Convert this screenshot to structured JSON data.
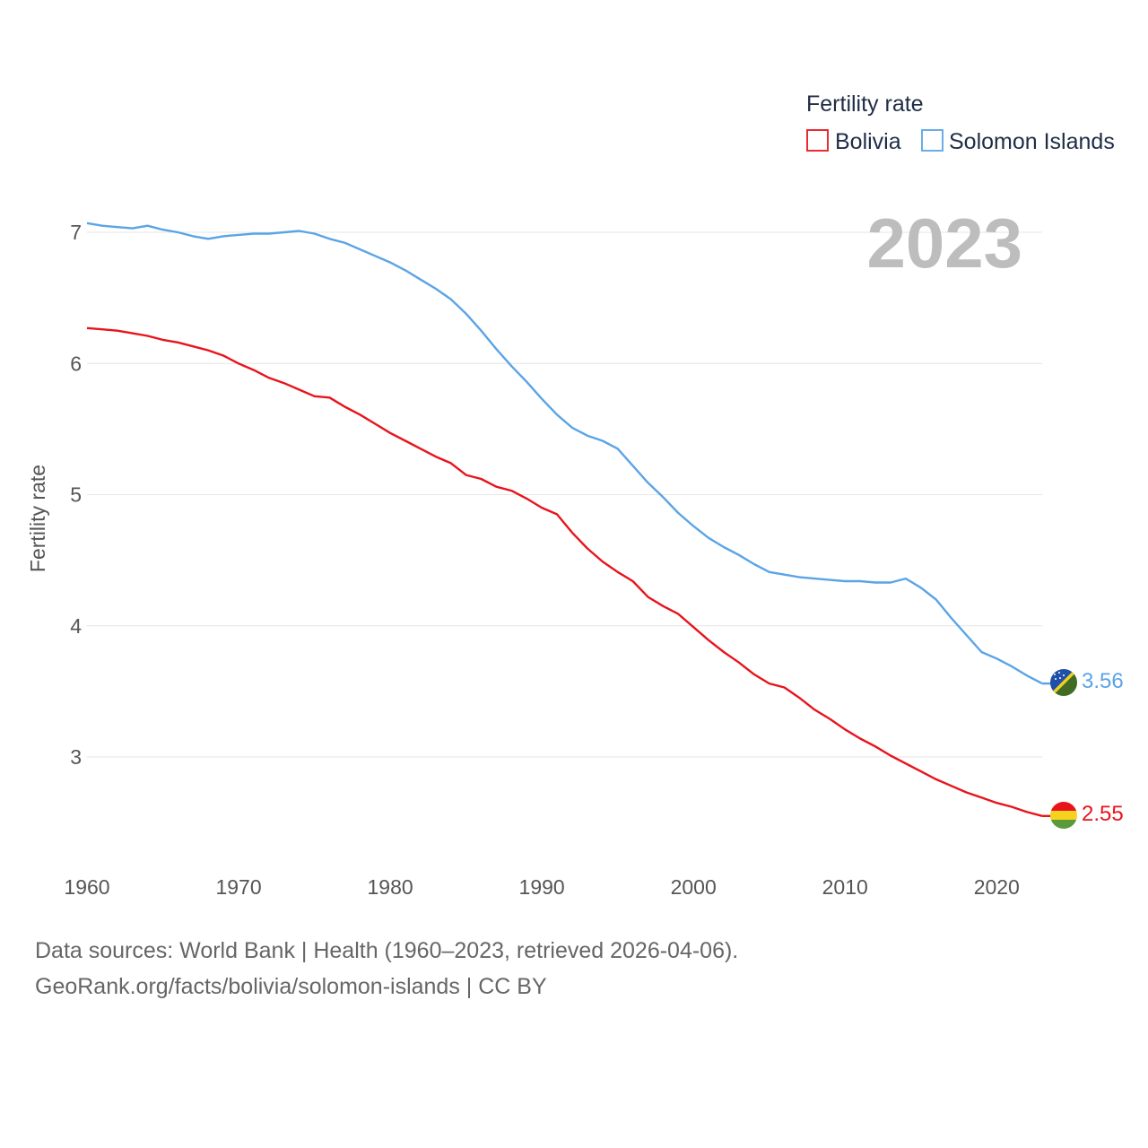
{
  "chart_data": {
    "type": "line",
    "ylabel": "Fertility rate",
    "xlabel": "",
    "legend_title": "Fertility rate",
    "legend_position": "top-right",
    "current_year": "2023",
    "xlim": [
      1960,
      2023
    ],
    "ylim": [
      2.4,
      7.2
    ],
    "x_ticks": [
      1960,
      1970,
      1980,
      1990,
      2000,
      2010,
      2020
    ],
    "y_ticks": [
      3,
      4,
      5,
      6,
      7
    ],
    "grid": true,
    "x": [
      1960,
      1961,
      1962,
      1963,
      1964,
      1965,
      1966,
      1967,
      1968,
      1969,
      1970,
      1971,
      1972,
      1973,
      1974,
      1975,
      1976,
      1977,
      1978,
      1979,
      1980,
      1981,
      1982,
      1983,
      1984,
      1985,
      1986,
      1987,
      1988,
      1989,
      1990,
      1991,
      1992,
      1993,
      1994,
      1995,
      1996,
      1997,
      1998,
      1999,
      2000,
      2001,
      2002,
      2003,
      2004,
      2005,
      2006,
      2007,
      2008,
      2009,
      2010,
      2011,
      2012,
      2013,
      2014,
      2015,
      2016,
      2017,
      2018,
      2019,
      2020,
      2021,
      2022,
      2023
    ],
    "series": [
      {
        "name": "Bolivia",
        "color": "#e8141c",
        "end_label": "2.55",
        "values": [
          6.27,
          6.26,
          6.25,
          6.23,
          6.21,
          6.18,
          6.16,
          6.13,
          6.1,
          6.06,
          6.0,
          5.95,
          5.89,
          5.85,
          5.8,
          5.75,
          5.74,
          5.67,
          5.61,
          5.54,
          5.47,
          5.41,
          5.35,
          5.29,
          5.24,
          5.15,
          5.12,
          5.06,
          5.03,
          4.97,
          4.9,
          4.85,
          4.71,
          4.59,
          4.49,
          4.41,
          4.34,
          4.22,
          4.15,
          4.09,
          3.99,
          3.89,
          3.8,
          3.72,
          3.63,
          3.56,
          3.53,
          3.45,
          3.36,
          3.29,
          3.21,
          3.14,
          3.08,
          3.01,
          2.95,
          2.89,
          2.83,
          2.78,
          2.73,
          2.69,
          2.65,
          2.62,
          2.58,
          2.55
        ]
      },
      {
        "name": "Solomon Islands",
        "color": "#5aa4e6",
        "end_label": "3.56",
        "values": [
          7.07,
          7.05,
          7.04,
          7.03,
          7.05,
          7.02,
          7.0,
          6.97,
          6.95,
          6.97,
          6.98,
          6.99,
          6.99,
          7.0,
          7.01,
          6.99,
          6.95,
          6.92,
          6.87,
          6.82,
          6.77,
          6.71,
          6.64,
          6.57,
          6.49,
          6.38,
          6.25,
          6.11,
          5.98,
          5.86,
          5.73,
          5.61,
          5.51,
          5.45,
          5.41,
          5.35,
          5.22,
          5.09,
          4.98,
          4.86,
          4.76,
          4.67,
          4.6,
          4.54,
          4.47,
          4.41,
          4.39,
          4.37,
          4.36,
          4.35,
          4.34,
          4.34,
          4.33,
          4.33,
          4.36,
          4.29,
          4.2,
          4.06,
          3.93,
          3.8,
          3.75,
          3.69,
          3.62,
          3.56
        ]
      }
    ]
  },
  "footer": {
    "line1": "Data sources: World Bank | Health (1960–2023, retrieved 2026-04-06).",
    "line2": "GeoRank.org/facts/bolivia/solomon-islands | CC BY"
  }
}
